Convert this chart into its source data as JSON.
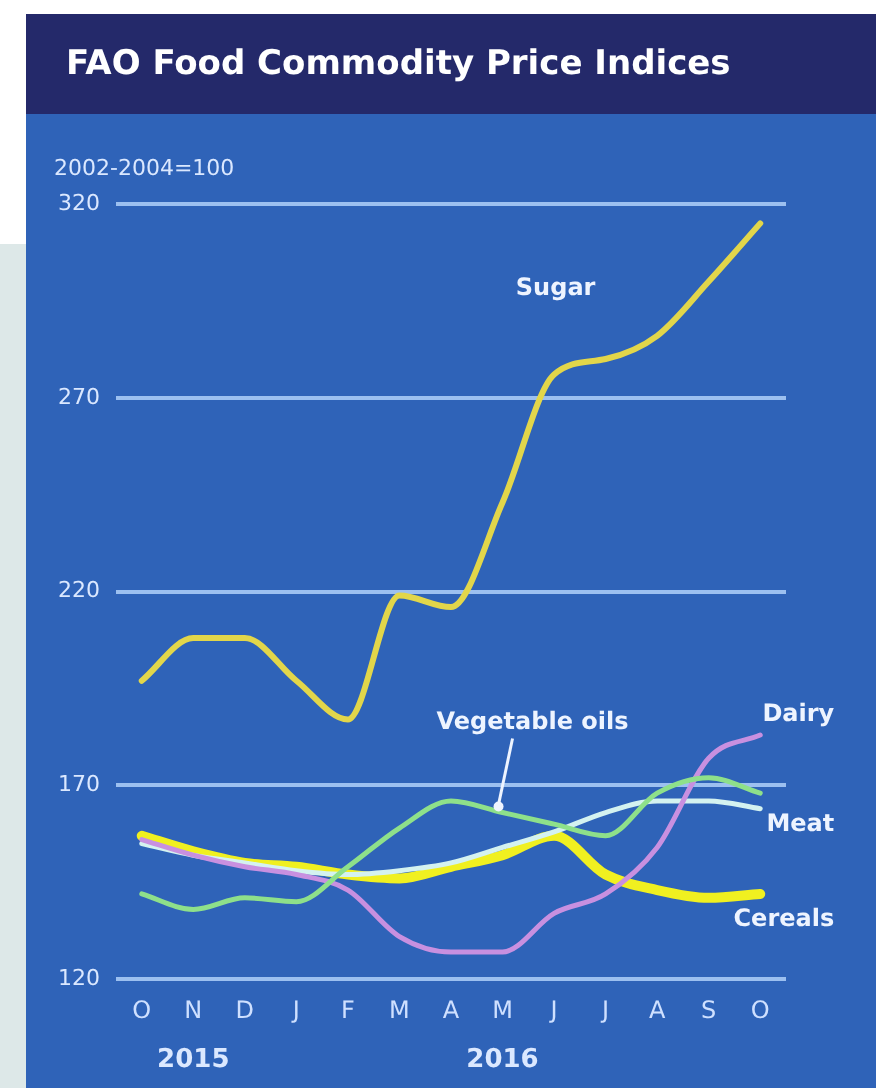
{
  "chart_data": {
    "type": "line",
    "title": "FAO Food Commodity Price Indices",
    "ylabel": "2002-2004=100",
    "categories": [
      "O",
      "N",
      "D",
      "J",
      "F",
      "M",
      "A",
      "M",
      "J",
      "J",
      "A",
      "S",
      "O"
    ],
    "annotations": [
      "2015",
      "2016"
    ],
    "series": [
      {
        "name": "Sugar",
        "color": "#e2d64a",
        "values": [
          197,
          208,
          208,
          197,
          187,
          219,
          216,
          243,
          276,
          280,
          286,
          300,
          315
        ]
      },
      {
        "name": "Vegetable oils",
        "color": "#8ee08a",
        "values": [
          142,
          138,
          141,
          140,
          149,
          159,
          166,
          163,
          160,
          157,
          168,
          172,
          168
        ]
      },
      {
        "name": "Dairy",
        "color": "#c890e0",
        "values": [
          156,
          152,
          149,
          147,
          143,
          131,
          127,
          127,
          137,
          142,
          154,
          177,
          183
        ]
      },
      {
        "name": "Meat",
        "color": "#d4f2f0",
        "values": [
          155,
          152,
          150,
          148,
          147,
          148,
          150,
          154,
          158,
          163,
          166,
          166,
          164
        ]
      },
      {
        "name": "Cereals",
        "color": "#f0f020",
        "values": [
          157,
          153,
          150,
          149,
          147,
          146,
          149,
          152,
          157,
          147,
          143,
          141,
          142
        ]
      }
    ],
    "ylim": [
      120,
      320
    ],
    "yticks": [
      120,
      170,
      220,
      270,
      320
    ],
    "grid": "y",
    "legend": false,
    "marker": "none",
    "line_style": "solid"
  }
}
